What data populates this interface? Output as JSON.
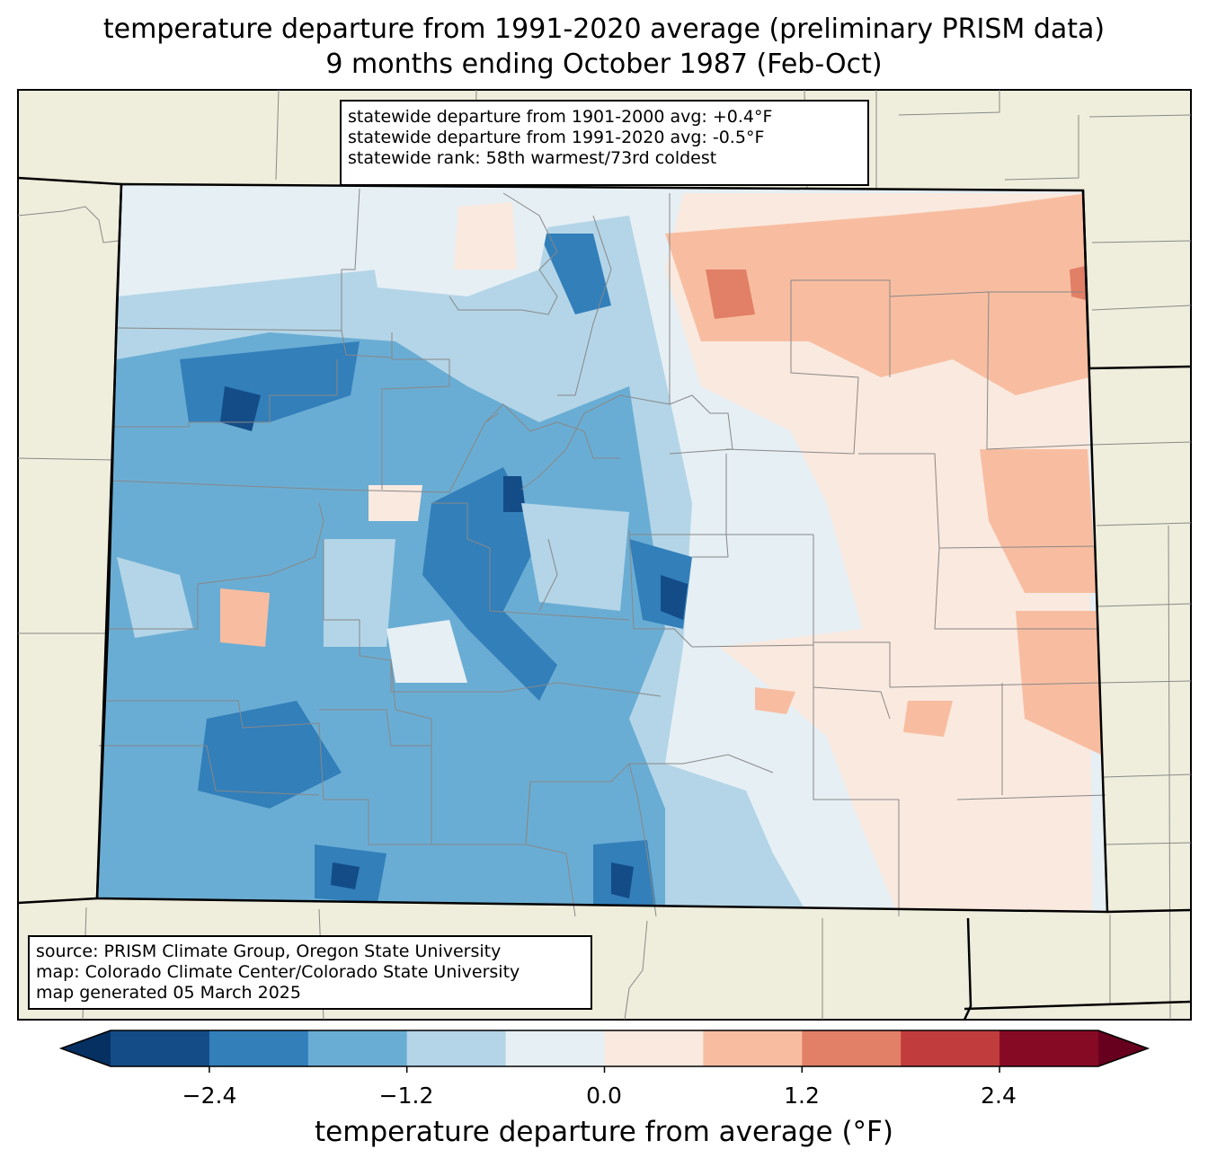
{
  "title": {
    "line1": "temperature departure from 1991-2020 average (preliminary PRISM data)",
    "line2": "9 months ending October 1987 (Feb-Oct)"
  },
  "stats_box": {
    "line1": "statewide departure from 1901-2000 avg: +0.4°F",
    "line2": "statewide departure from 1991-2020 avg: -0.5°F",
    "line3": "statewide rank: 58th warmest/73rd coldest"
  },
  "source_box": {
    "line1": "source: PRISM Climate Group, Oregon State University",
    "line2": "map: Colorado Climate Center/Colorado State University",
    "line3": "map generated 05 March 2025"
  },
  "colorbar": {
    "label": "temperature departure from average (°F)",
    "ticks": [
      "−2.4",
      "−1.2",
      "0.0",
      "1.2",
      "2.4"
    ],
    "tick_values": [
      -2.4,
      -1.2,
      0.0,
      1.2,
      2.4
    ],
    "bounds": [
      -3.0,
      -2.4,
      -1.8,
      -1.2,
      -0.6,
      0.0,
      0.6,
      1.2,
      1.8,
      2.4,
      3.0
    ],
    "colors": [
      "#053061",
      "#134c87",
      "#327fba",
      "#6aadd4",
      "#b3d5e7",
      "#e6eff4",
      "#fae9df",
      "#f8bda0",
      "#e27f67",
      "#c13c3c",
      "#870a24",
      "#67001f"
    ]
  },
  "map": {
    "land_color": "#efeedc",
    "region": "Colorado"
  }
}
